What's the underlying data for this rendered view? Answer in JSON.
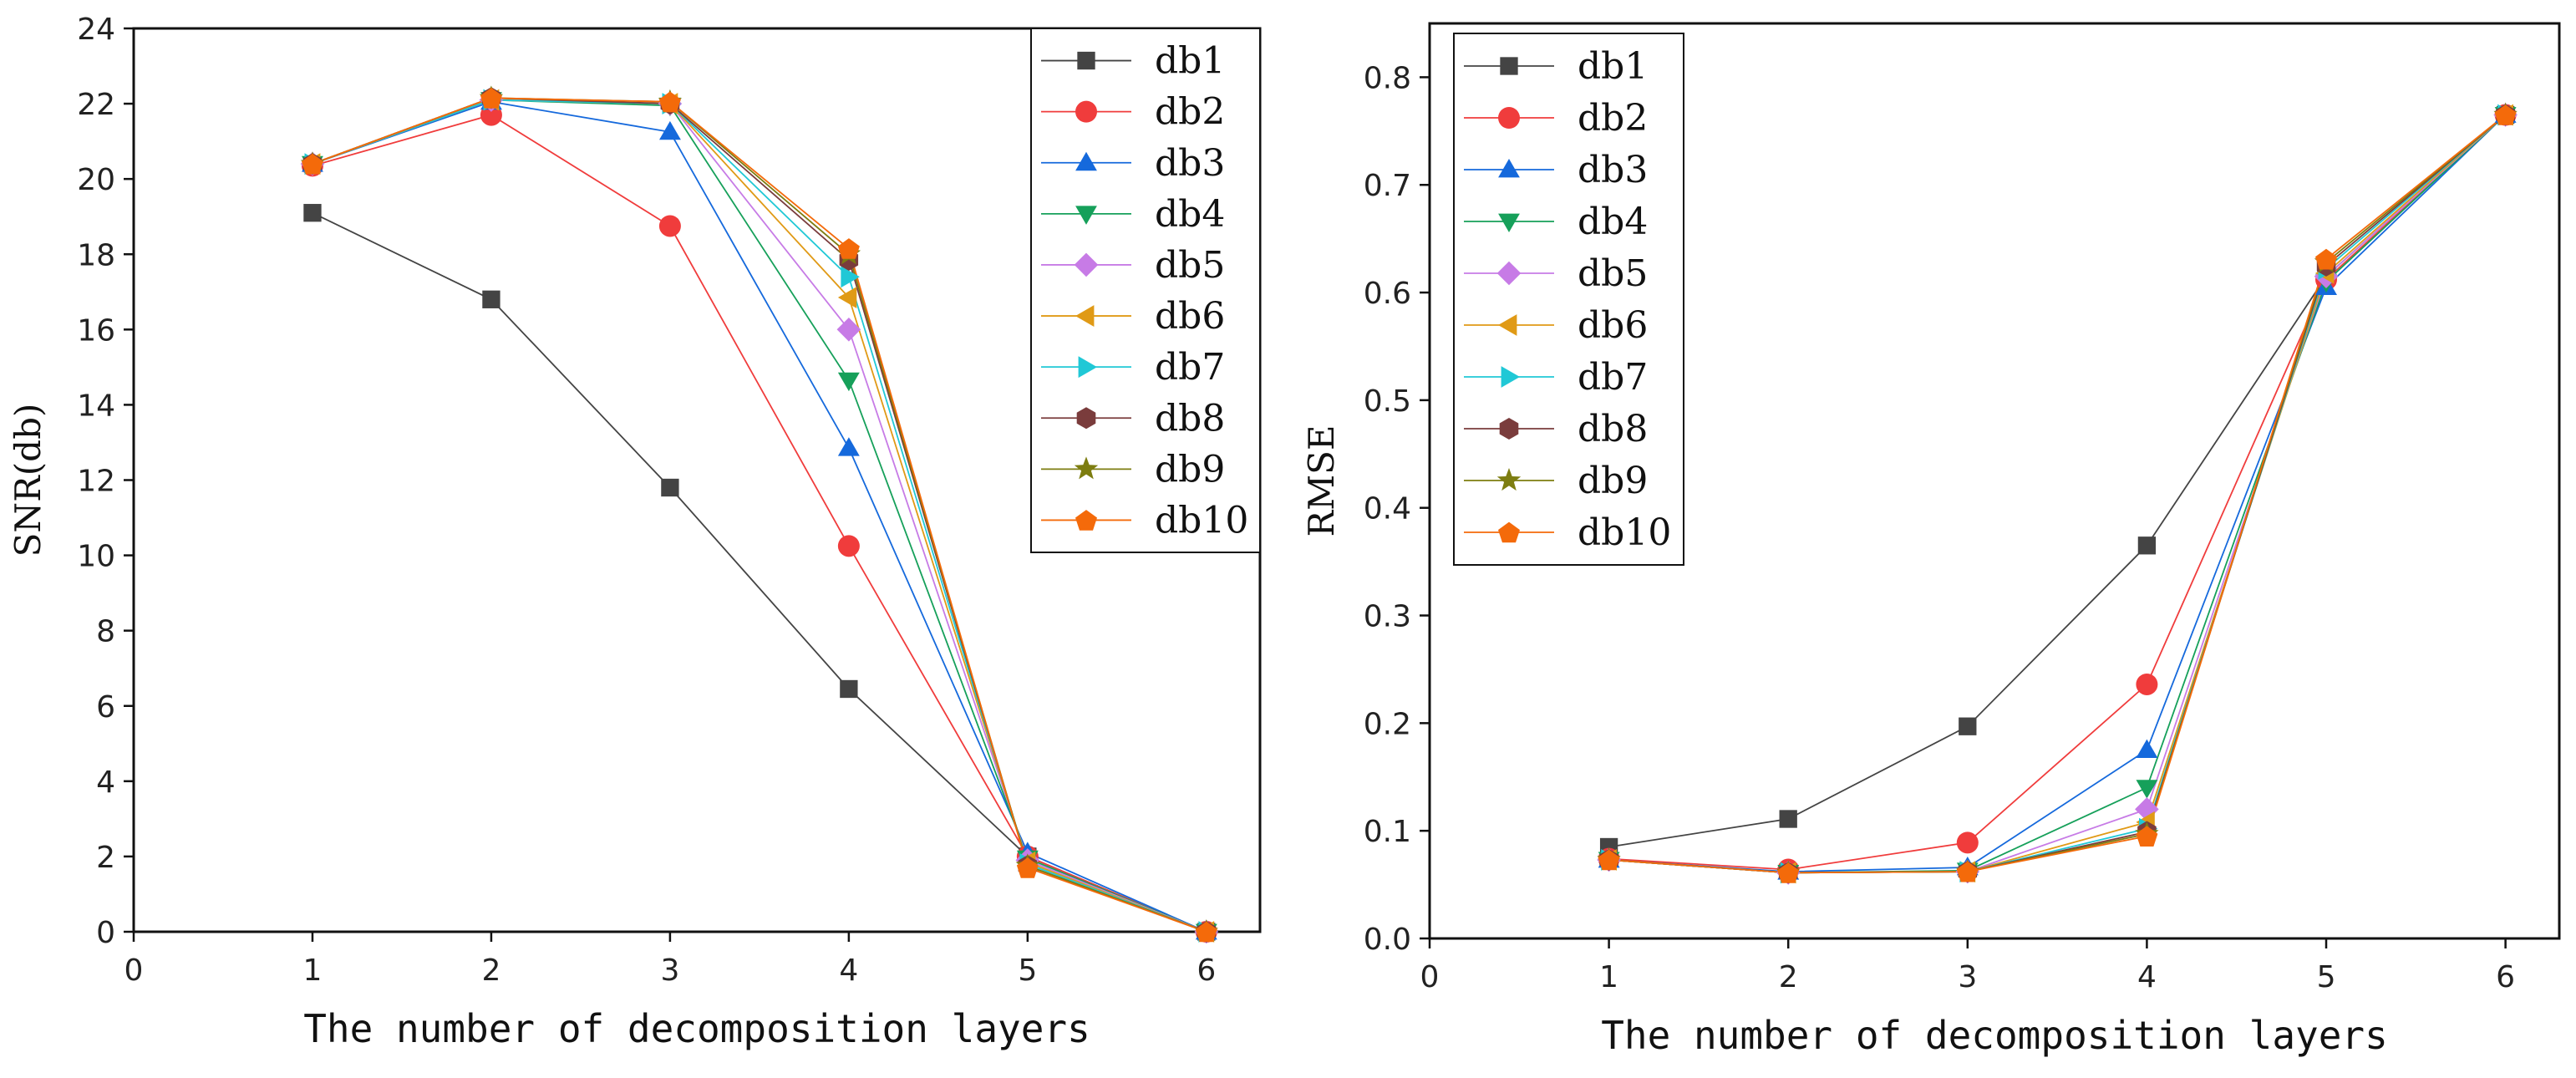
{
  "chart_data": [
    {
      "type": "line",
      "title": "",
      "xlabel": "The number of decomposition layers",
      "ylabel": "SNR(db)",
      "xlim": [
        0,
        6.3
      ],
      "ylim": [
        0,
        24
      ],
      "xticks": [
        0,
        1,
        2,
        3,
        4,
        5,
        6
      ],
      "yticks": [
        0,
        2,
        4,
        6,
        8,
        10,
        12,
        14,
        16,
        18,
        20,
        22,
        24
      ],
      "legend_position": "top-right",
      "x": [
        1,
        2,
        3,
        4,
        5,
        6
      ],
      "series": [
        {
          "name": "db1",
          "values": [
            19.1,
            16.8,
            11.8,
            6.45,
            2.0,
            0.0
          ]
        },
        {
          "name": "db2",
          "values": [
            20.35,
            21.7,
            18.75,
            10.25,
            2.0,
            0.0
          ]
        },
        {
          "name": "db3",
          "values": [
            20.4,
            22.05,
            21.25,
            12.85,
            2.1,
            0.0
          ]
        },
        {
          "name": "db4",
          "values": [
            20.4,
            22.1,
            21.95,
            14.65,
            1.95,
            0.0
          ]
        },
        {
          "name": "db5",
          "values": [
            20.4,
            22.1,
            22.0,
            16.0,
            1.9,
            0.0
          ]
        },
        {
          "name": "db6",
          "values": [
            20.4,
            22.1,
            22.0,
            16.85,
            1.85,
            0.0
          ]
        },
        {
          "name": "db7",
          "values": [
            20.4,
            22.1,
            22.0,
            17.4,
            1.8,
            0.0
          ]
        },
        {
          "name": "db8",
          "values": [
            20.4,
            22.15,
            22.0,
            17.85,
            1.75,
            0.0
          ]
        },
        {
          "name": "db9",
          "values": [
            20.4,
            22.15,
            22.05,
            18.0,
            1.75,
            0.0
          ]
        },
        {
          "name": "db10",
          "values": [
            20.4,
            22.15,
            22.05,
            18.15,
            1.7,
            0.0
          ]
        }
      ]
    },
    {
      "type": "line",
      "title": "",
      "xlabel": "The number of decomposition layers",
      "ylabel": "RMSE",
      "xlim": [
        0,
        6.3
      ],
      "ylim": [
        0,
        0.85
      ],
      "xticks": [
        0,
        1,
        2,
        3,
        4,
        5,
        6
      ],
      "yticks": [
        "0.0",
        "0.1",
        "0.2",
        "0.3",
        "0.4",
        "0.5",
        "0.6",
        "0.7",
        "0.8"
      ],
      "legend_position": "top-left",
      "x": [
        1,
        2,
        3,
        4,
        5,
        6
      ],
      "series": [
        {
          "name": "db1",
          "values": [
            0.085,
            0.111,
            0.197,
            0.365,
            0.615,
            0.765
          ]
        },
        {
          "name": "db2",
          "values": [
            0.074,
            0.064,
            0.089,
            0.236,
            0.612,
            0.765
          ]
        },
        {
          "name": "db3",
          "values": [
            0.073,
            0.062,
            0.066,
            0.175,
            0.605,
            0.765
          ]
        },
        {
          "name": "db4",
          "values": [
            0.073,
            0.061,
            0.063,
            0.14,
            0.61,
            0.765
          ]
        },
        {
          "name": "db5",
          "values": [
            0.073,
            0.061,
            0.062,
            0.12,
            0.615,
            0.765
          ]
        },
        {
          "name": "db6",
          "values": [
            0.073,
            0.061,
            0.062,
            0.108,
            0.618,
            0.765
          ]
        },
        {
          "name": "db7",
          "values": [
            0.073,
            0.061,
            0.062,
            0.102,
            0.622,
            0.765
          ]
        },
        {
          "name": "db8",
          "values": [
            0.073,
            0.061,
            0.062,
            0.099,
            0.625,
            0.765
          ]
        },
        {
          "name": "db9",
          "values": [
            0.073,
            0.061,
            0.062,
            0.097,
            0.628,
            0.765
          ]
        },
        {
          "name": "db10",
          "values": [
            0.073,
            0.061,
            0.062,
            0.095,
            0.631,
            0.765
          ]
        }
      ]
    }
  ],
  "series_styles": [
    {
      "name": "db1",
      "color": "#444444",
      "marker": "square"
    },
    {
      "name": "db2",
      "color": "#f03c3c",
      "marker": "circle"
    },
    {
      "name": "db3",
      "color": "#1569dc",
      "marker": "triangle-up"
    },
    {
      "name": "db4",
      "color": "#16a05a",
      "marker": "triangle-down"
    },
    {
      "name": "db5",
      "color": "#c77be6",
      "marker": "diamond"
    },
    {
      "name": "db6",
      "color": "#e09a16",
      "marker": "triangle-left"
    },
    {
      "name": "db7",
      "color": "#20c8d6",
      "marker": "triangle-right"
    },
    {
      "name": "db8",
      "color": "#7a3c3c",
      "marker": "hexagon"
    },
    {
      "name": "db9",
      "color": "#7d7d10",
      "marker": "star"
    },
    {
      "name": "db10",
      "color": "#f46a0a",
      "marker": "pentagon"
    }
  ]
}
